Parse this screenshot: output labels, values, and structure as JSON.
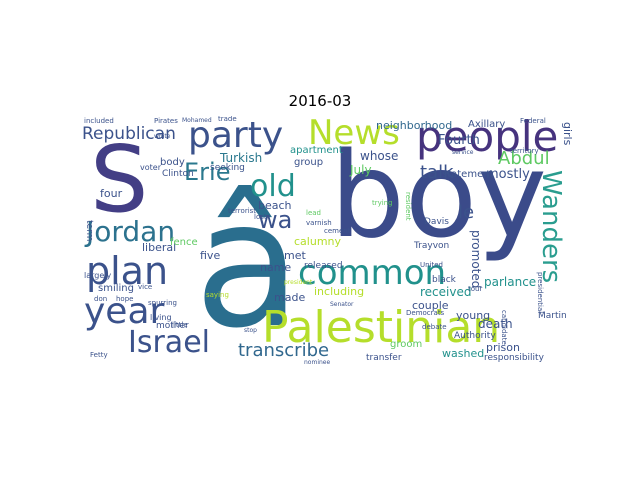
{
  "title": "2016-03",
  "palette": {
    "dark_purple": "#440154",
    "indigo": "#3b528b",
    "teal": "#21918c",
    "green": "#5ec962",
    "yellow_green": "#b5de2b",
    "yellow": "#dce319"
  },
  "words": [
    {
      "t": "â"
    },
    {
      "t": "boy"
    },
    {
      "t": "S"
    },
    {
      "t": "Palestinian"
    },
    {
      "t": "people"
    },
    {
      "t": "party"
    },
    {
      "t": "News"
    },
    {
      "t": "plan"
    },
    {
      "t": "common"
    },
    {
      "t": "year"
    },
    {
      "t": "old"
    },
    {
      "t": "Jordan"
    },
    {
      "t": "Israel"
    },
    {
      "t": "Wanders"
    },
    {
      "t": "Erie"
    },
    {
      "t": "wa"
    },
    {
      "t": "transcribe"
    },
    {
      "t": "Republican"
    },
    {
      "t": "Abdul"
    },
    {
      "t": "talk"
    },
    {
      "t": "le"
    },
    {
      "t": "Fourth"
    },
    {
      "t": "Turkish"
    },
    {
      "t": "mostly"
    },
    {
      "t": "July"
    },
    {
      "t": "whose"
    },
    {
      "t": "neighborhood"
    },
    {
      "t": "Axillary"
    },
    {
      "t": "apartment"
    },
    {
      "t": "group"
    },
    {
      "t": "statement"
    },
    {
      "t": "promoted"
    },
    {
      "t": "parlance"
    },
    {
      "t": "death"
    },
    {
      "t": "received"
    },
    {
      "t": "including"
    },
    {
      "t": "couple"
    },
    {
      "t": "groom"
    },
    {
      "t": "washed"
    },
    {
      "t": "prison"
    },
    {
      "t": "responsibility"
    },
    {
      "t": "transfer"
    },
    {
      "t": "made"
    },
    {
      "t": "met"
    },
    {
      "t": "name"
    },
    {
      "t": "calumny"
    },
    {
      "t": "five"
    },
    {
      "t": "liberal"
    },
    {
      "t": "fence"
    },
    {
      "t": "smiling"
    },
    {
      "t": "beach"
    },
    {
      "t": "four"
    },
    {
      "t": "body"
    },
    {
      "t": "Clinton"
    },
    {
      "t": "seeking"
    },
    {
      "t": "young"
    },
    {
      "t": "Authority"
    },
    {
      "t": "Martin"
    },
    {
      "t": "black"
    },
    {
      "t": "Davis"
    },
    {
      "t": "Trayvon"
    },
    {
      "t": "released"
    },
    {
      "t": "girls"
    },
    {
      "t": "term"
    },
    {
      "t": "largely"
    },
    {
      "t": "voter"
    },
    {
      "t": "mother"
    },
    {
      "t": "living"
    },
    {
      "t": "trade"
    },
    {
      "t": "included"
    },
    {
      "t": "Pirates"
    },
    {
      "t": "Mohamed"
    },
    {
      "t": "little"
    },
    {
      "t": "hope"
    },
    {
      "t": "don"
    },
    {
      "t": "saying"
    },
    {
      "t": "terrorist"
    },
    {
      "t": "lead"
    },
    {
      "t": "cement"
    },
    {
      "t": "varnish"
    },
    {
      "t": "resident"
    },
    {
      "t": "Democrats"
    },
    {
      "t": "United"
    },
    {
      "t": "debate"
    },
    {
      "t": "territory"
    },
    {
      "t": "Federal"
    },
    {
      "t": "trying"
    },
    {
      "t": "Senator"
    },
    {
      "t": "candidate"
    },
    {
      "t": "president"
    },
    {
      "t": "spurring"
    },
    {
      "t": "vice"
    },
    {
      "t": "presidential"
    },
    {
      "t": "nominee"
    },
    {
      "t": "service"
    },
    {
      "t": "white"
    },
    {
      "t": "lost"
    },
    {
      "t": "stop"
    },
    {
      "t": "Fetty"
    },
    {
      "t": "tour"
    }
  ]
}
